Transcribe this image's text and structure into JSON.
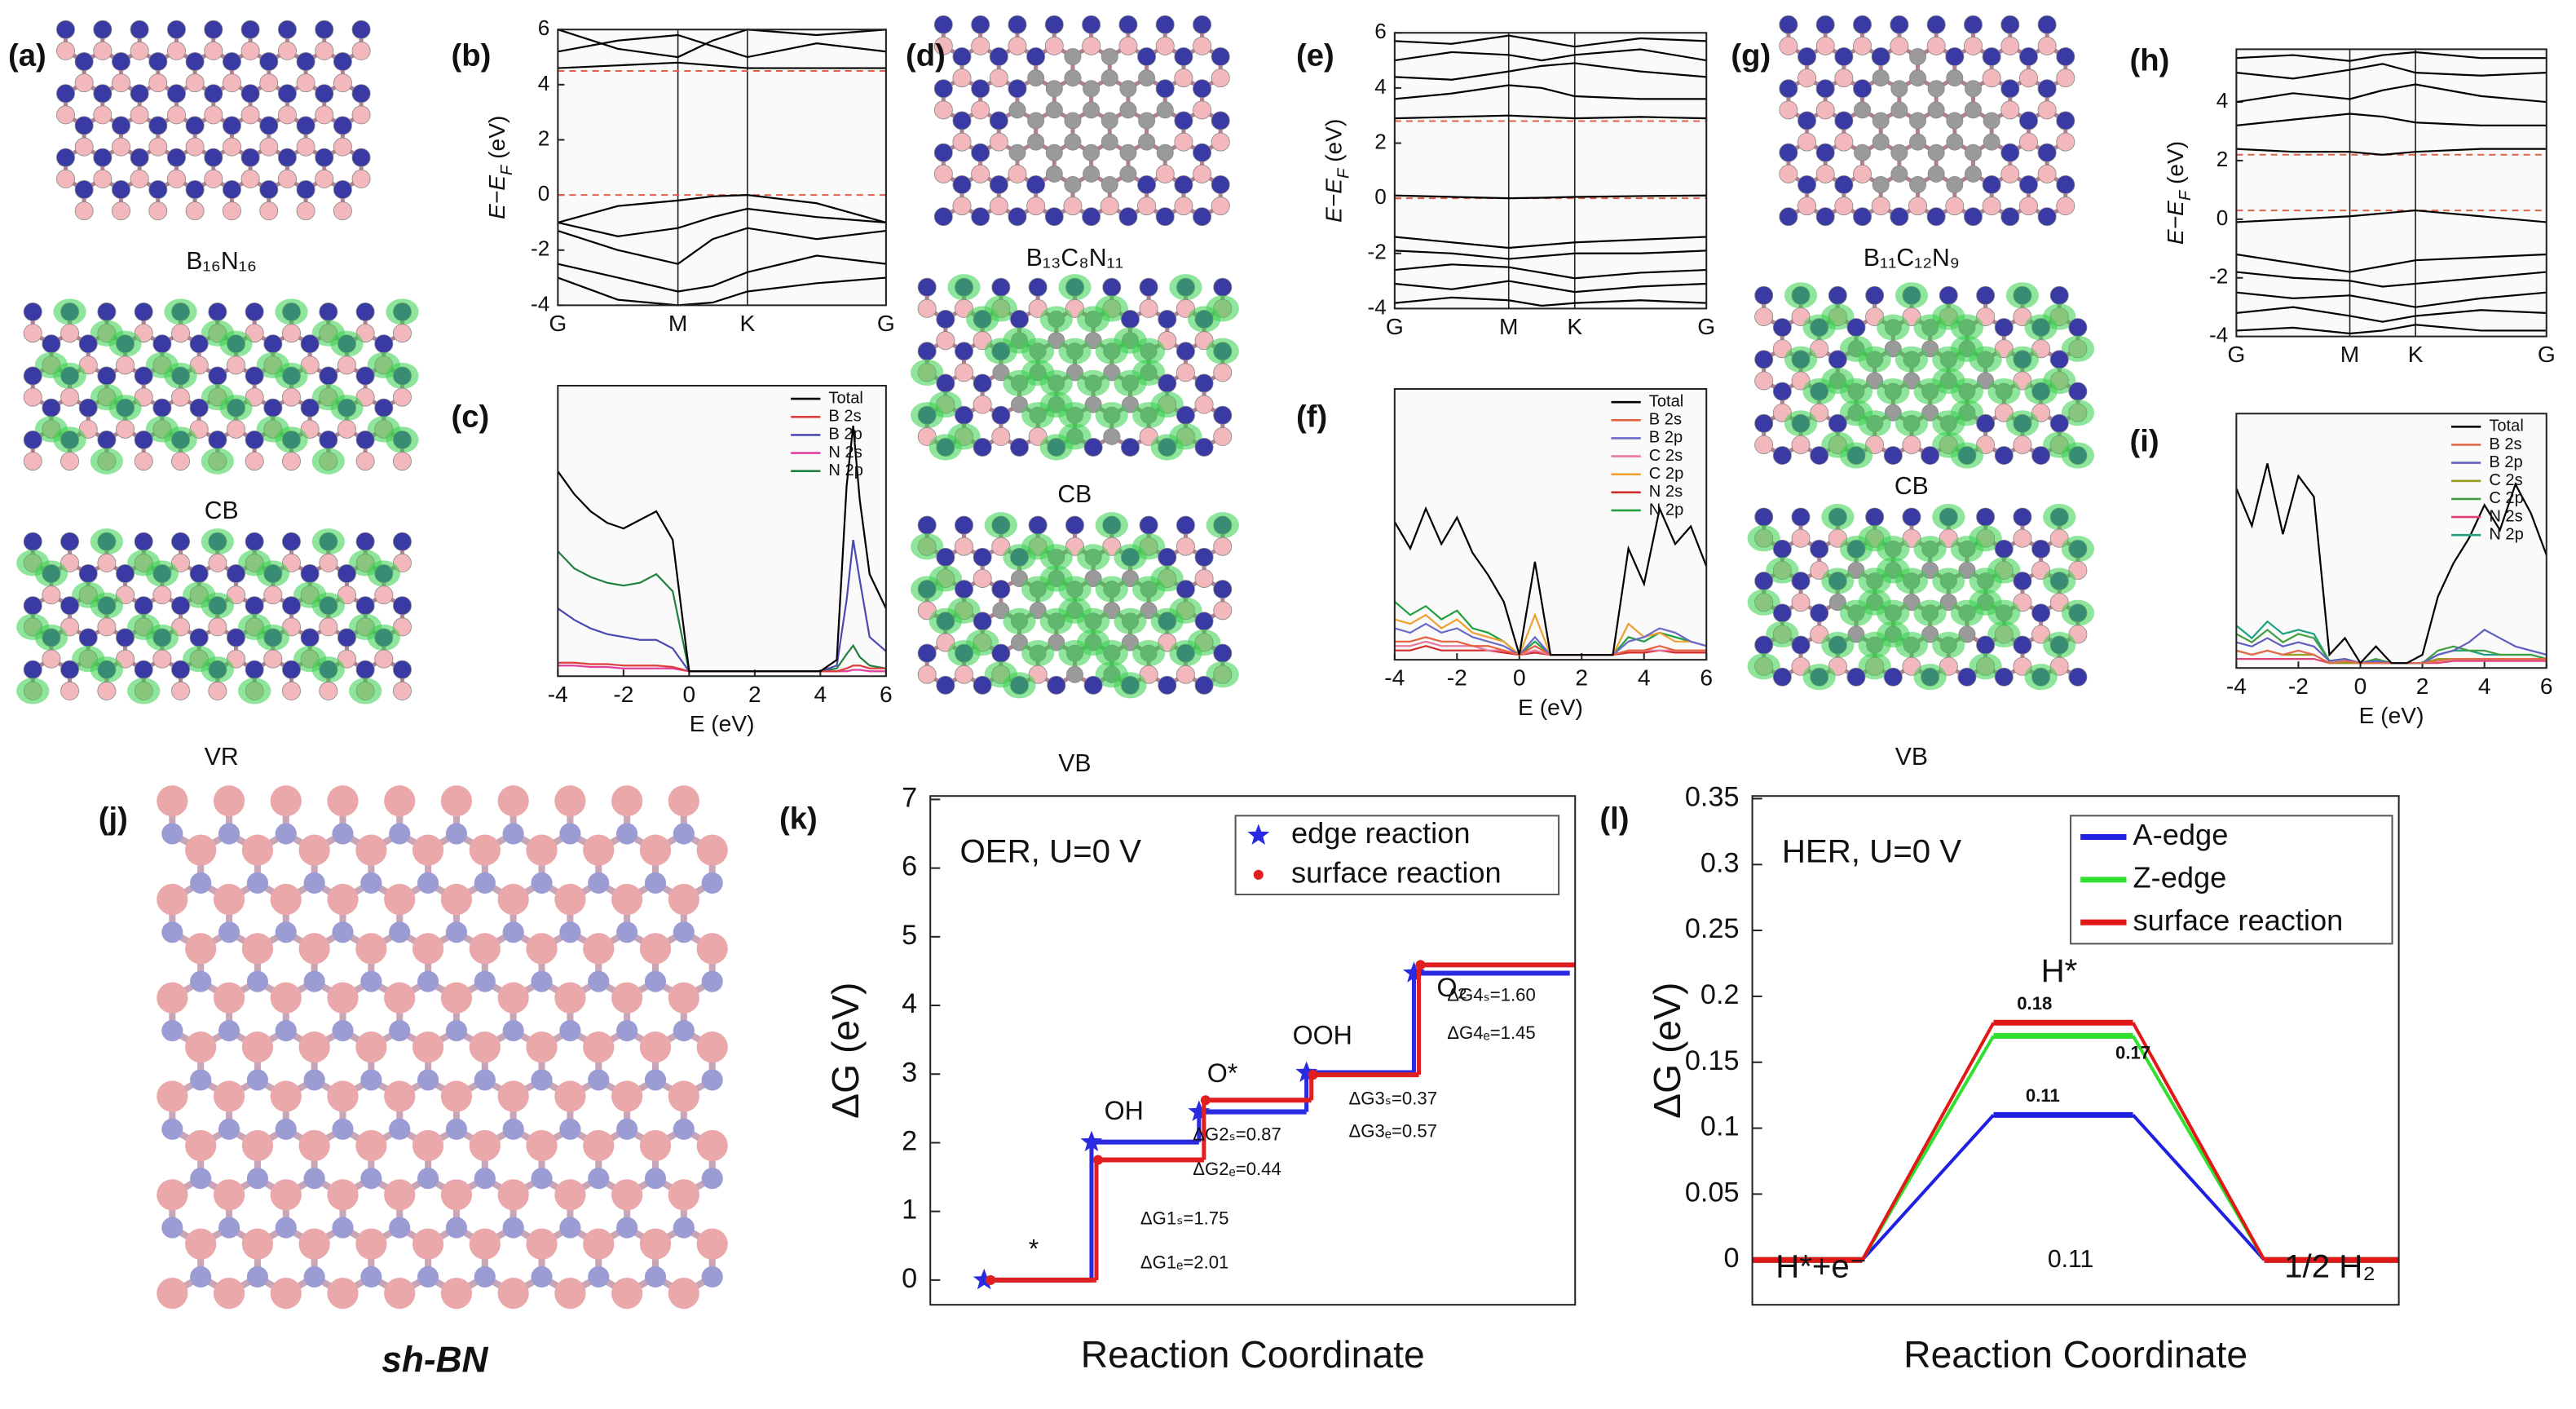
{
  "chart_data": [
    {
      "type": "band",
      "label": "(b)",
      "ylabel": [
        "E−E",
        "F",
        " (eV)"
      ],
      "x": [
        0,
        0.289,
        0.577,
        0.744,
        0.911,
        1.244,
        1.577
      ],
      "xlim": [
        0,
        1.577
      ],
      "xticks": [
        {
          "value": 0,
          "label": "G"
        },
        {
          "value": 0.577,
          "label": "M"
        },
        {
          "value": 0.911,
          "label": "K"
        },
        {
          "value": 1.577,
          "label": "G"
        }
      ],
      "ylim": [
        -4,
        6
      ],
      "yticks": [
        -4,
        -2,
        0,
        2,
        4,
        6
      ],
      "color": "#000000",
      "bands": [
        [
          -1.0,
          -0.4,
          -0.2,
          -0.05,
          0,
          -0.3,
          -1.0
        ],
        [
          -1.0,
          -1.5,
          -1.2,
          -0.8,
          -0.5,
          -0.8,
          -1.0
        ],
        [
          -1.3,
          -2.0,
          -2.5,
          -1.6,
          -1.2,
          -1.6,
          -1.3
        ],
        [
          -2.5,
          -3.0,
          -3.5,
          -3.3,
          -2.8,
          -2.2,
          -2.5
        ],
        [
          -3.0,
          -3.8,
          -4.0,
          -3.9,
          -3.5,
          -3.2,
          -3.0
        ],
        [
          4.6,
          4.7,
          4.8,
          4.7,
          4.6,
          4.6,
          4.6
        ],
        [
          5.2,
          5.6,
          5.8,
          5.4,
          5.0,
          5.5,
          5.2
        ],
        [
          6.0,
          5.3,
          5.0,
          5.6,
          6.0,
          5.8,
          6.0
        ]
      ],
      "hlines": [
        0,
        4.5
      ],
      "hline_color": "#e0604a"
    },
    {
      "type": "dos",
      "label": "(c)",
      "xlabel": "E (eV)",
      "x": [
        -4,
        -3.5,
        -3,
        -2.5,
        -2,
        -1.5,
        -1,
        -0.5,
        0,
        0.5,
        1,
        2,
        3,
        4,
        4.5,
        4.8,
        5,
        5.2,
        5.5,
        6
      ],
      "xlim": [
        -4,
        6
      ],
      "xticks": [
        -4,
        -2,
        0,
        2,
        4,
        6
      ],
      "ylim": [
        0,
        10
      ],
      "series": [
        {
          "name": "Total",
          "color": "#000000",
          "values": [
            7,
            6.2,
            5.6,
            5.2,
            5,
            5.3,
            5.6,
            4.6,
            0,
            0,
            0,
            0,
            0,
            0,
            0.4,
            6.5,
            8.6,
            6,
            3.4,
            2.2
          ]
        },
        {
          "name": "B 2s",
          "color": "#e03c3c",
          "values": [
            0.3,
            0.3,
            0.25,
            0.25,
            0.2,
            0.2,
            0.2,
            0.15,
            0,
            0,
            0,
            0,
            0,
            0,
            0,
            0.1,
            0.2,
            0.2,
            0.1,
            0.1
          ]
        },
        {
          "name": "B 2p",
          "color": "#4a4ab0",
          "values": [
            2.2,
            1.8,
            1.5,
            1.3,
            1.2,
            1.1,
            1.1,
            0.8,
            0,
            0,
            0,
            0,
            0,
            0,
            0.2,
            2.5,
            4.6,
            3.2,
            1.2,
            0.7
          ]
        },
        {
          "name": "N 2s",
          "color": "#e040a0",
          "values": [
            0.2,
            0.2,
            0.15,
            0.15,
            0.1,
            0.1,
            0.1,
            0.1,
            0,
            0,
            0,
            0,
            0,
            0,
            0,
            0,
            0.05,
            0.05,
            0,
            0
          ]
        },
        {
          "name": "N 2p",
          "color": "#208040",
          "values": [
            4.2,
            3.6,
            3.3,
            3.1,
            3.0,
            3.1,
            3.4,
            2.8,
            0,
            0,
            0,
            0,
            0,
            0,
            0.1,
            0.6,
            0.9,
            0.5,
            0.2,
            0.1
          ]
        }
      ]
    },
    {
      "type": "band",
      "label": "(e)",
      "ylabel": [
        "E−E",
        "F",
        " (eV)"
      ],
      "x": [
        0,
        0.289,
        0.577,
        0.744,
        0.911,
        1.244,
        1.577
      ],
      "xlim": [
        0,
        1.577
      ],
      "xticks": [
        {
          "value": 0,
          "label": "G"
        },
        {
          "value": 0.577,
          "label": "M"
        },
        {
          "value": 0.911,
          "label": "K"
        },
        {
          "value": 1.577,
          "label": "G"
        }
      ],
      "ylim": [
        -4,
        6
      ],
      "yticks": [
        -4,
        -2,
        0,
        2,
        4,
        6
      ],
      "color": "#000000",
      "bands": [
        [
          -1.4,
          -1.6,
          -1.8,
          -1.7,
          -1.6,
          -1.5,
          -1.4
        ],
        [
          -1.9,
          -2.0,
          -2.2,
          -2.1,
          -2.0,
          -2.0,
          -1.9
        ],
        [
          -2.6,
          -2.4,
          -2.5,
          -2.7,
          -2.9,
          -2.7,
          -2.6
        ],
        [
          -3.1,
          -3.3,
          -3.0,
          -3.2,
          -3.4,
          -3.2,
          -3.1
        ],
        [
          -3.8,
          -3.6,
          -3.7,
          -3.9,
          -3.8,
          -3.7,
          -3.8
        ],
        [
          0.1,
          0.05,
          0,
          0.02,
          0.05,
          0.08,
          0.1
        ],
        [
          2.9,
          2.95,
          3.0,
          2.95,
          2.9,
          2.95,
          2.9
        ],
        [
          3.6,
          3.8,
          4.1,
          4.0,
          3.7,
          3.6,
          3.6
        ],
        [
          4.4,
          4.3,
          4.6,
          4.8,
          4.9,
          4.6,
          4.4
        ],
        [
          5.0,
          5.3,
          5.2,
          5.0,
          5.2,
          5.4,
          5.0
        ],
        [
          5.7,
          5.6,
          5.9,
          5.7,
          5.5,
          5.8,
          5.7
        ]
      ],
      "hlines": [
        0,
        2.8
      ],
      "hline_color": "#e0604a"
    },
    {
      "type": "dos",
      "label": "(f)",
      "xlabel": "E (eV)",
      "x": [
        -4,
        -3.5,
        -3,
        -2.5,
        -2,
        -1.5,
        -1,
        -0.5,
        0,
        0.5,
        1,
        1.5,
        2,
        2.5,
        3,
        3.5,
        4,
        4.5,
        5,
        5.5,
        6
      ],
      "xlim": [
        -4,
        6
      ],
      "xticks": [
        -4,
        -2,
        0,
        2,
        4,
        6
      ],
      "ylim": [
        0,
        6
      ],
      "series": [
        {
          "name": "Total",
          "color": "#000000",
          "values": [
            3.0,
            2.4,
            3.3,
            2.5,
            3.1,
            2.3,
            1.8,
            1.2,
            0,
            2.1,
            0,
            0,
            0,
            0,
            0,
            2.4,
            1.6,
            3.3,
            2.5,
            2.9,
            2.0
          ]
        },
        {
          "name": "B 2s",
          "color": "#e8603c",
          "values": [
            0.3,
            0.3,
            0.4,
            0.3,
            0.3,
            0.2,
            0.2,
            0.1,
            0,
            0.2,
            0,
            0,
            0,
            0,
            0,
            0.1,
            0.1,
            0.2,
            0.1,
            0.1,
            0.1
          ]
        },
        {
          "name": "B 2p",
          "color": "#6a6ac8",
          "values": [
            0.6,
            0.5,
            0.7,
            0.5,
            0.6,
            0.4,
            0.3,
            0.2,
            0,
            0.4,
            0,
            0,
            0,
            0,
            0,
            0.3,
            0.4,
            0.6,
            0.5,
            0.3,
            0.2
          ]
        },
        {
          "name": "C 2s",
          "color": "#e87aa0",
          "values": [
            0.2,
            0.2,
            0.3,
            0.2,
            0.2,
            0.2,
            0.1,
            0.1,
            0,
            0.1,
            0,
            0,
            0,
            0,
            0,
            0.1,
            0.1,
            0.1,
            0.1,
            0.1,
            0.1
          ]
        },
        {
          "name": "C 2p",
          "color": "#f0a030",
          "values": [
            0.8,
            0.7,
            0.9,
            0.6,
            0.8,
            0.5,
            0.4,
            0.3,
            0,
            0.9,
            0,
            0,
            0,
            0,
            0,
            0.7,
            0.4,
            0.5,
            0.3,
            0.3,
            0.2
          ]
        },
        {
          "name": "N 2s",
          "color": "#d02a2a",
          "values": [
            0.1,
            0.1,
            0.2,
            0.1,
            0.1,
            0.1,
            0.1,
            0.05,
            0,
            0.05,
            0,
            0,
            0,
            0,
            0,
            0.05,
            0.05,
            0.1,
            0.05,
            0.05,
            0.05
          ]
        },
        {
          "name": "N 2p",
          "color": "#22a040",
          "values": [
            1.2,
            0.9,
            1.1,
            0.8,
            1.0,
            0.6,
            0.5,
            0.3,
            0,
            0.3,
            0,
            0,
            0,
            0,
            0,
            0.4,
            0.3,
            0.5,
            0.4,
            0.3,
            0.2
          ]
        }
      ]
    },
    {
      "type": "band",
      "label": "(h)",
      "ylabel": [
        "E−E",
        "F",
        " (eV)"
      ],
      "x": [
        0,
        0.289,
        0.577,
        0.744,
        0.911,
        1.244,
        1.577
      ],
      "xlim": [
        0,
        1.577
      ],
      "xticks": [
        {
          "value": 0,
          "label": "G"
        },
        {
          "value": 0.577,
          "label": "M"
        },
        {
          "value": 0.911,
          "label": "K"
        },
        {
          "value": 1.577,
          "label": "G"
        }
      ],
      "ylim": [
        -4,
        5.8
      ],
      "yticks": [
        -4,
        -2,
        0,
        2,
        4
      ],
      "color": "#000000",
      "bands": [
        [
          -1.2,
          -1.5,
          -1.8,
          -1.6,
          -1.4,
          -1.3,
          -1.2
        ],
        [
          -1.8,
          -2.0,
          -2.1,
          -2.3,
          -2.2,
          -2.0,
          -1.8
        ],
        [
          -2.5,
          -2.7,
          -2.6,
          -2.8,
          -3.0,
          -2.7,
          -2.5
        ],
        [
          -3.2,
          -3.0,
          -3.3,
          -3.5,
          -3.3,
          -3.1,
          -3.2
        ],
        [
          -3.8,
          -3.7,
          -3.9,
          -3.8,
          -3.6,
          -3.8,
          -3.8
        ],
        [
          -0.1,
          0,
          0.1,
          0.2,
          0.3,
          0.1,
          -0.1
        ],
        [
          2.4,
          2.3,
          2.3,
          2.2,
          2.3,
          2.4,
          2.4
        ],
        [
          3.2,
          3.4,
          3.6,
          3.5,
          3.3,
          3.2,
          3.2
        ],
        [
          4.0,
          4.3,
          4.1,
          4.4,
          4.6,
          4.2,
          4.0
        ],
        [
          5.0,
          4.8,
          5.1,
          5.3,
          5.0,
          4.9,
          5.0
        ],
        [
          5.5,
          5.6,
          5.4,
          5.6,
          5.7,
          5.5,
          5.5
        ]
      ],
      "hlines": [
        0.3,
        2.2
      ],
      "hline_color": "#e0604a"
    },
    {
      "type": "dos",
      "label": "(i)",
      "xlabel": "E (eV)",
      "x": [
        -4,
        -3.5,
        -3,
        -2.5,
        -2,
        -1.5,
        -1,
        -0.5,
        0,
        0.5,
        1,
        1.5,
        2,
        2.5,
        3,
        3.5,
        4,
        4.5,
        5,
        5.5,
        6
      ],
      "xlim": [
        -4,
        6
      ],
      "xticks": [
        -4,
        -2,
        0,
        2,
        4,
        6
      ],
      "ylim": [
        0,
        6
      ],
      "series": [
        {
          "name": "Total",
          "color": "#000000",
          "values": [
            4.2,
            3.3,
            4.8,
            3.1,
            4.5,
            4.0,
            0.2,
            0.6,
            0,
            0.4,
            0,
            0,
            0.2,
            1.6,
            2.4,
            3.0,
            3.8,
            3.2,
            4.3,
            3.6,
            2.6
          ]
        },
        {
          "name": "B 2s",
          "color": "#e06a4a",
          "values": [
            0.3,
            0.2,
            0.3,
            0.2,
            0.3,
            0.2,
            0,
            0.05,
            0,
            0,
            0,
            0,
            0,
            0.05,
            0.1,
            0.1,
            0.1,
            0.1,
            0.1,
            0.1,
            0.1
          ]
        },
        {
          "name": "B 2p",
          "color": "#6060c0",
          "values": [
            0.5,
            0.4,
            0.6,
            0.4,
            0.5,
            0.4,
            0.05,
            0.1,
            0,
            0.05,
            0,
            0,
            0,
            0.2,
            0.3,
            0.5,
            0.8,
            0.6,
            0.4,
            0.3,
            0.2
          ]
        },
        {
          "name": "C 2s",
          "color": "#9a9a20",
          "values": [
            0.3,
            0.2,
            0.3,
            0.2,
            0.2,
            0.2,
            0,
            0,
            0,
            0,
            0,
            0,
            0,
            0.1,
            0.1,
            0.1,
            0.1,
            0.1,
            0.1,
            0.1,
            0.1
          ]
        },
        {
          "name": "C 2p",
          "color": "#40a040",
          "values": [
            0.7,
            0.5,
            0.8,
            0.5,
            0.7,
            0.6,
            0.05,
            0.1,
            0,
            0.1,
            0,
            0,
            0,
            0.3,
            0.4,
            0.3,
            0.3,
            0.2,
            0.2,
            0.2,
            0.1
          ]
        },
        {
          "name": "N 2s",
          "color": "#e0407a",
          "values": [
            0.1,
            0.1,
            0.1,
            0.1,
            0.1,
            0.1,
            0,
            0,
            0,
            0,
            0,
            0,
            0,
            0,
            0.05,
            0.05,
            0.05,
            0.05,
            0.05,
            0.05,
            0.05
          ]
        },
        {
          "name": "N 2p",
          "color": "#20a080",
          "values": [
            0.9,
            0.6,
            1.0,
            0.7,
            0.8,
            0.7,
            0.05,
            0.1,
            0,
            0.05,
            0,
            0,
            0,
            0.2,
            0.3,
            0.3,
            0.2,
            0.2,
            0.2,
            0.2,
            0.1
          ]
        }
      ]
    },
    {
      "type": "step",
      "label": "(k)",
      "text": "OER, U=0 V",
      "ylabel": "ΔG (eV)",
      "xlabel": "Reaction Coordinate",
      "ylim": [
        -0.36,
        7.05
      ],
      "yticks": [
        0,
        1,
        2,
        3,
        4,
        5,
        6,
        7
      ],
      "categories": [
        "*",
        "OH",
        "O*",
        "OOH",
        "O₂"
      ],
      "series": [
        {
          "name": "edge reaction",
          "color": "#2a2ae0",
          "marker": "star",
          "values": [
            0,
            2.01,
            2.45,
            3.02,
            4.47
          ]
        },
        {
          "name": "surface reaction",
          "color": "#e02020",
          "marker": "dot",
          "values": [
            0,
            1.75,
            2.62,
            2.99,
            4.59
          ]
        }
      ],
      "annotations": [
        "ΔG1ₛ=1.75",
        "ΔG1ₑ=2.01",
        "ΔG2ₛ=0.87",
        "ΔG2ₑ=0.44",
        "ΔG3ₛ=0.37",
        "ΔG3ₑ=0.57",
        "ΔG4ₛ=1.60",
        "ΔG4ₑ=1.45"
      ]
    },
    {
      "type": "step",
      "label": "(l)",
      "text": "HER, U=0 V",
      "ylabel": "ΔG (eV)",
      "xlabel": "Reaction Coordinate",
      "ylim": [
        -0.034,
        0.352
      ],
      "yticks": [
        0,
        0.05,
        0.1,
        0.15,
        0.2,
        0.25,
        0.3,
        0.35
      ],
      "categories": [
        "H*+e⁻",
        "H*",
        "1/2 H₂"
      ],
      "series": [
        {
          "name": "A-edge",
          "color": "#2020e0",
          "values": [
            0,
            0.11,
            0
          ]
        },
        {
          "name": "Z-edge",
          "color": "#30e030",
          "values": [
            0,
            0.17,
            0
          ]
        },
        {
          "name": "surface reaction",
          "color": "#e01818",
          "values": [
            0,
            0.18,
            0
          ]
        }
      ],
      "annotations": [
        "0.11"
      ]
    }
  ],
  "structures": [
    {
      "label": "(a)",
      "captions": [
        "B₁₆N₁₆",
        "CB",
        "VR"
      ]
    },
    {
      "label": "(d)",
      "captions": [
        "B₁₃C₈N₁₁",
        "CB",
        "VB"
      ]
    },
    {
      "label": "(g)",
      "captions": [
        "B₁₁C₁₂N₉",
        "CB",
        "VB"
      ]
    },
    {
      "label": "(j)",
      "captions": [
        "sh-BN"
      ]
    }
  ]
}
